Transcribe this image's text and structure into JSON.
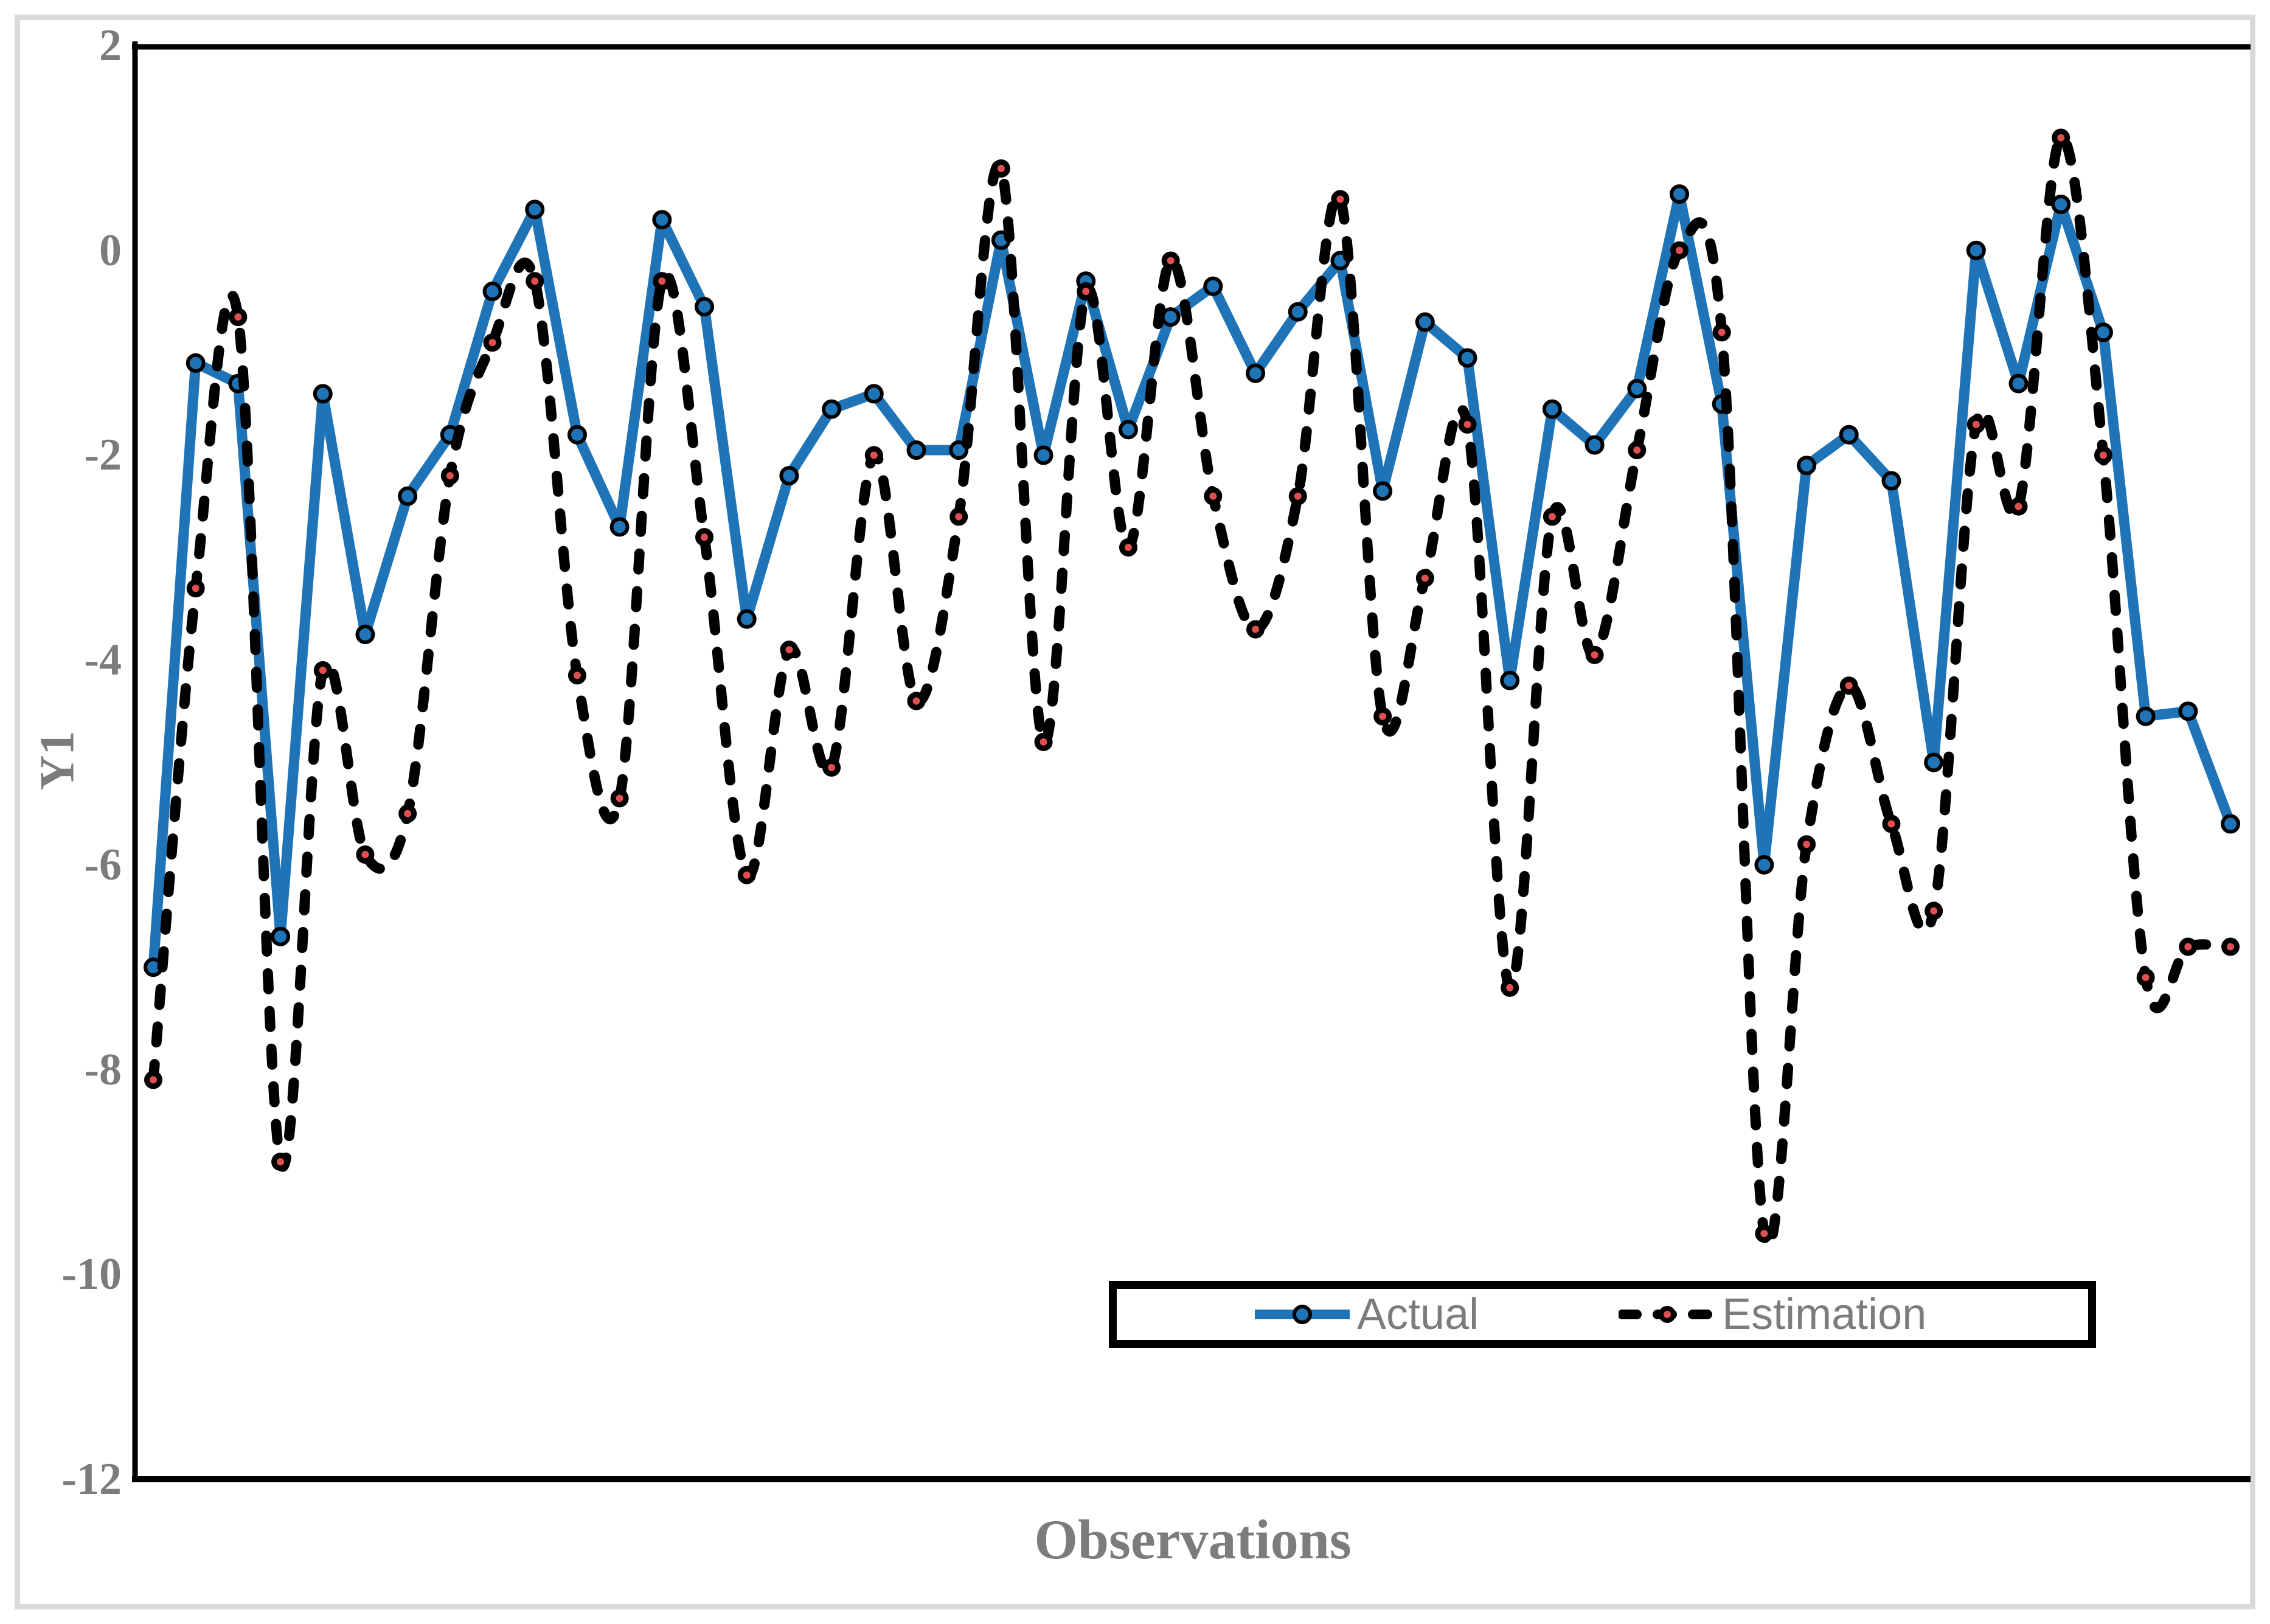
{
  "figure": {
    "background_color": "#FFFFFF",
    "frame_color": "#D9D9D9"
  },
  "axes": {
    "y_title": "Y1",
    "x_title": "Observations",
    "y_ticks": [
      2,
      0,
      -2,
      -4,
      -6,
      -8,
      -10,
      -12
    ],
    "text_color": "#7C7C7C"
  },
  "legend": {
    "items": [
      {
        "label": "Actual"
      },
      {
        "label": "Estimation"
      }
    ]
  },
  "chart_data": {
    "type": "line",
    "title": "",
    "xlabel": "Observations",
    "ylabel": "Y1",
    "ylim": [
      -12,
      2
    ],
    "grid": false,
    "legend_position": "inside-bottom-right",
    "x": [
      1,
      2,
      3,
      4,
      5,
      6,
      7,
      8,
      9,
      10,
      11,
      12,
      13,
      14,
      15,
      16,
      17,
      18,
      19,
      20,
      21,
      22,
      23,
      24,
      25,
      26,
      27,
      28,
      29,
      30,
      31,
      32,
      33,
      34,
      35,
      36,
      37,
      38,
      39,
      40,
      41,
      42,
      43,
      44,
      45,
      46,
      47,
      48,
      49,
      50
    ],
    "series": [
      {
        "name": "Actual",
        "line_style": "solid",
        "line_color": "#1F74B8",
        "marker": "circle",
        "marker_color": "#1F74B8",
        "values": [
          -7.0,
          -1.1,
          -1.3,
          -6.7,
          -1.4,
          -3.75,
          -2.4,
          -1.8,
          -0.4,
          0.4,
          -1.8,
          -2.7,
          0.3,
          -0.55,
          -3.6,
          -2.2,
          -1.55,
          -1.4,
          -1.95,
          -1.95,
          0.1,
          -2.0,
          -0.3,
          -1.75,
          -0.65,
          -0.35,
          -1.2,
          -0.6,
          -0.1,
          -2.35,
          -0.7,
          -1.05,
          -4.2,
          -1.55,
          -1.9,
          -1.35,
          0.55,
          -1.5,
          -6.0,
          -2.1,
          -1.8,
          -2.25,
          -5.0,
          0.0,
          -1.3,
          0.45,
          -0.8,
          -4.55,
          -4.5,
          -5.6
        ]
      },
      {
        "name": "Estimation",
        "line_style": "dashed",
        "line_color": "#000000",
        "marker": "circle",
        "marker_color": "#E04F4F",
        "values": [
          -8.1,
          -3.3,
          -0.65,
          -8.9,
          -4.1,
          -5.9,
          -5.5,
          -2.2,
          -0.9,
          -0.3,
          -4.15,
          -5.35,
          -0.3,
          -2.8,
          -6.1,
          -3.9,
          -5.05,
          -2.0,
          -4.4,
          -2.6,
          0.8,
          -4.8,
          -0.4,
          -2.9,
          -0.1,
          -2.4,
          -3.7,
          -2.4,
          0.5,
          -4.55,
          -3.2,
          -1.7,
          -7.2,
          -2.6,
          -3.95,
          -1.95,
          0.0,
          -0.8,
          -9.6,
          -5.8,
          -4.25,
          -5.6,
          -6.45,
          -1.7,
          -2.5,
          1.1,
          -2.0,
          -7.1,
          -6.8,
          -6.8
        ]
      }
    ]
  }
}
